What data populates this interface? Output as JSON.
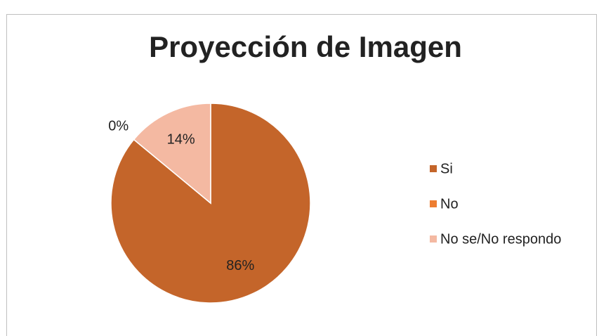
{
  "chart_data": {
    "type": "pie",
    "title": "Proyección de Imagen",
    "categories": [
      "Si",
      "No",
      "No se/No respondo"
    ],
    "values": [
      86,
      0,
      14
    ],
    "value_labels": [
      "86%",
      "0%",
      "14%"
    ],
    "colors": [
      "#c4652a",
      "#ed7d31",
      "#f4b9a2"
    ],
    "legend": "right"
  }
}
